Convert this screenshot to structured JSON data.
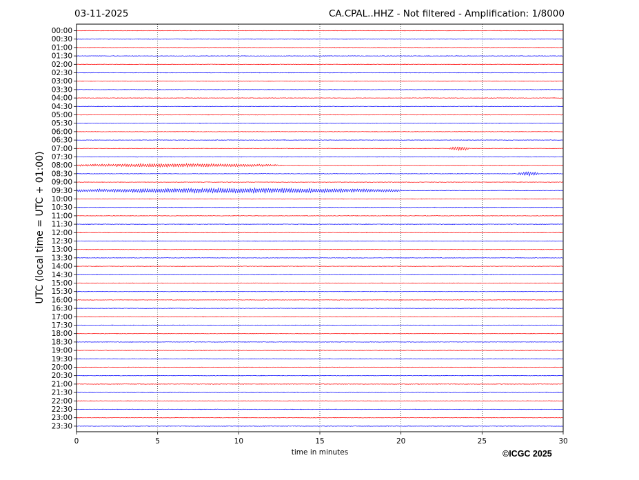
{
  "header": {
    "date": "03-11-2025",
    "title": "CA.CPAL..HHZ - Not filtered - Amplification: 1/8000"
  },
  "footer": {
    "copyright": "©ICGC 2025"
  },
  "chart_data": {
    "type": "line",
    "subtype": "helicorder",
    "title": "CA.CPAL..HHZ - Not filtered - Amplification: 1/8000",
    "date": "03-11-2025",
    "xlabel": "time in minutes",
    "ylabel": "UTC (local time = UTC + 01:00)",
    "xlim": [
      0,
      30
    ],
    "xticks": [
      0,
      5,
      10,
      15,
      20,
      25,
      30
    ],
    "vertical_grid": "dotted at every 5 minutes",
    "trace_colors": [
      "#ff0000",
      "#0000ff"
    ],
    "row_labels": [
      "00:00",
      "00:30",
      "01:00",
      "01:30",
      "02:00",
      "02:30",
      "03:00",
      "03:30",
      "04:00",
      "04:30",
      "05:00",
      "05:30",
      "06:00",
      "06:30",
      "07:00",
      "07:30",
      "08:00",
      "08:30",
      "09:00",
      "09:30",
      "10:00",
      "10:30",
      "11:00",
      "11:30",
      "12:00",
      "12:30",
      "13:00",
      "13:30",
      "14:00",
      "14:30",
      "15:00",
      "15:30",
      "16:00",
      "16:30",
      "17:00",
      "17:30",
      "18:00",
      "18:30",
      "19:00",
      "19:30",
      "20:00",
      "20:30",
      "21:00",
      "21:30",
      "22:00",
      "22:30",
      "23:00",
      "23:30"
    ],
    "events": [
      {
        "row": "07:00",
        "start_min": 23.0,
        "end_min": 24.2,
        "amplitude": 3
      },
      {
        "row": "08:00",
        "start_min": 0.0,
        "end_min": 12.5,
        "amplitude": 2.5
      },
      {
        "row": "08:30",
        "start_min": 27.2,
        "end_min": 28.5,
        "amplitude": 3
      },
      {
        "row": "09:30",
        "start_min": 0.0,
        "end_min": 20.0,
        "amplitude": 3.5
      }
    ]
  }
}
